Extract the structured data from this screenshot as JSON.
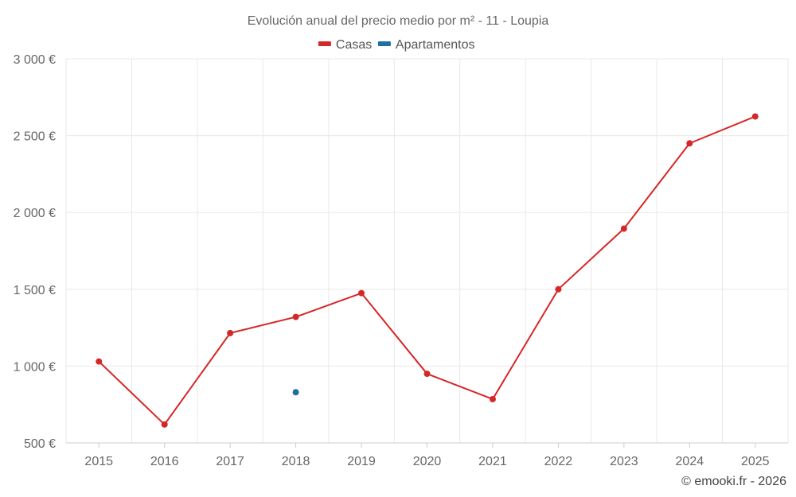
{
  "chart_data": {
    "type": "line",
    "title": "Evolución anual del precio medio por m² - 11 - Loupia",
    "categories": [
      "2015",
      "2016",
      "2017",
      "2018",
      "2019",
      "2020",
      "2021",
      "2022",
      "2023",
      "2024",
      "2025"
    ],
    "series": [
      {
        "name": "Casas",
        "color": "#d62728",
        "values": [
          1030,
          620,
          1215,
          1320,
          1475,
          950,
          785,
          1500,
          1895,
          2450,
          2625
        ]
      },
      {
        "name": "Apartamentos",
        "color": "#1f6fa3",
        "values": [
          null,
          null,
          null,
          830,
          null,
          null,
          null,
          null,
          null,
          null,
          null
        ]
      }
    ],
    "ylim": [
      500,
      3000
    ],
    "yticks": [
      500,
      1000,
      1500,
      2000,
      2500,
      3000
    ],
    "ytick_labels": [
      "500 €",
      "1 000 €",
      "1 500 €",
      "2 000 €",
      "2 500 €",
      "3 000 €"
    ],
    "grid": true,
    "legend_position": "top-center"
  },
  "credit": "© emooki.fr - 2026"
}
